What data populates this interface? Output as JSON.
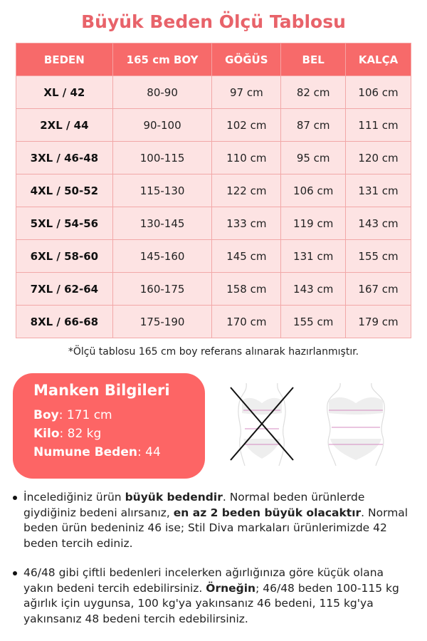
{
  "title": "Büyük Beden Ölçü Tablosu",
  "colors": {
    "accent": "#e8636a",
    "header": "#f76a6a",
    "row": "#fde3e3",
    "box": "#fd6565"
  },
  "table": {
    "headers": [
      "BEDEN",
      "165 cm BOY",
      "GÖĞÜS",
      "BEL",
      "KALÇA"
    ],
    "rows": [
      [
        "XL / 42",
        "80-90",
        "97 cm",
        "82 cm",
        "106 cm"
      ],
      [
        "2XL / 44",
        "90-100",
        "102 cm",
        "87 cm",
        "111 cm"
      ],
      [
        "3XL / 46-48",
        "100-115",
        "110 cm",
        "95 cm",
        "120 cm"
      ],
      [
        "4XL / 50-52",
        "115-130",
        "122 cm",
        "106 cm",
        "131 cm"
      ],
      [
        "5XL / 54-56",
        "130-145",
        "133 cm",
        "119 cm",
        "143 cm"
      ],
      [
        "6XL / 58-60",
        "145-160",
        "145 cm",
        "131 cm",
        "155 cm"
      ],
      [
        "7XL / 62-64",
        "160-175",
        "158 cm",
        "143 cm",
        "167 cm"
      ],
      [
        "8XL / 66-68",
        "175-190",
        "170 cm",
        "155 cm",
        "179 cm"
      ]
    ]
  },
  "note": "*Ölçü tablosu 165 cm boy referans alınarak hazırlanmıştır.",
  "model": {
    "title": "Manken Bilgileri",
    "boy_label": "Boy",
    "boy_value": ": 171 cm",
    "kilo_label": "Kilo",
    "kilo_value": ": 82 kg",
    "numune_label": "Numune Beden",
    "numune_value": ": 44"
  },
  "bullets": [
    {
      "t1": "İncelediğiniz ürün ",
      "b1": "büyük bedendir",
      "t2": ". Normal beden ürünlerde giydiğiniz bedeni alırsanız, ",
      "b2": "en az 2 beden büyük olacaktır",
      "t3": ". Normal beden ürün bedeniniz 46 ise; Stil Diva markaları ürünlerimizde 42 beden tercih ediniz."
    },
    {
      "t1": "46/48 gibi çiftli bedenleri incelerken ağırlığınıza göre küçük olana yakın bedeni tercih edebilirsiniz. ",
      "b1": "Örneğin",
      "t2": "; 46/48 beden 100-115 kg ağırlık için uygunsa, 100 kg'ya yakınsanız 46 bedeni, 115 kg'ya yakınsanız 48 bedeni tercih edebilirsiniz.",
      "b2": "",
      "t3": ""
    }
  ]
}
